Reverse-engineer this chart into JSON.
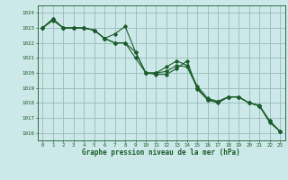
{
  "title": "Graphe pression niveau de la mer (hPa)",
  "background_color": "#cce8e8",
  "grid_color": "#99bbbb",
  "line_color": "#1a5c2a",
  "marker_color": "#1a5c2a",
  "ylim": [
    1015.5,
    1024.5
  ],
  "xlim": [
    -0.5,
    23.5
  ],
  "yticks": [
    1016,
    1017,
    1018,
    1019,
    1020,
    1021,
    1022,
    1023,
    1024
  ],
  "xticks": [
    0,
    1,
    2,
    3,
    4,
    5,
    6,
    7,
    8,
    9,
    10,
    11,
    12,
    13,
    14,
    15,
    16,
    17,
    18,
    19,
    20,
    21,
    22,
    23
  ],
  "s1": [
    1023.0,
    1023.5,
    1023.0,
    1023.0,
    1023.0,
    1022.85,
    1022.3,
    1022.6,
    1023.1,
    1021.4,
    1020.0,
    1020.0,
    1020.4,
    1020.8,
    1020.5,
    1019.1,
    1018.3,
    1018.1,
    1018.4,
    1018.4,
    1018.0,
    1017.8,
    1016.8,
    1016.1
  ],
  "s2": [
    1023.0,
    1023.6,
    1023.0,
    1023.0,
    1023.0,
    1022.85,
    1022.3,
    1022.0,
    1022.0,
    1021.0,
    1020.0,
    1019.9,
    1019.9,
    1020.3,
    1020.8,
    1018.9,
    1018.2,
    1018.0,
    1018.4,
    1018.4,
    1018.0,
    1017.8,
    1016.7,
    1016.1
  ],
  "s3": [
    1023.0,
    1023.6,
    1023.0,
    1023.0,
    1023.0,
    1022.85,
    1022.3,
    1022.0,
    1022.0,
    1021.4,
    1020.0,
    1020.0,
    1020.1,
    1020.5,
    1020.4,
    1019.0,
    1018.2,
    1018.1,
    1018.4,
    1018.4,
    1018.0,
    1017.85,
    1016.8,
    1016.1
  ]
}
